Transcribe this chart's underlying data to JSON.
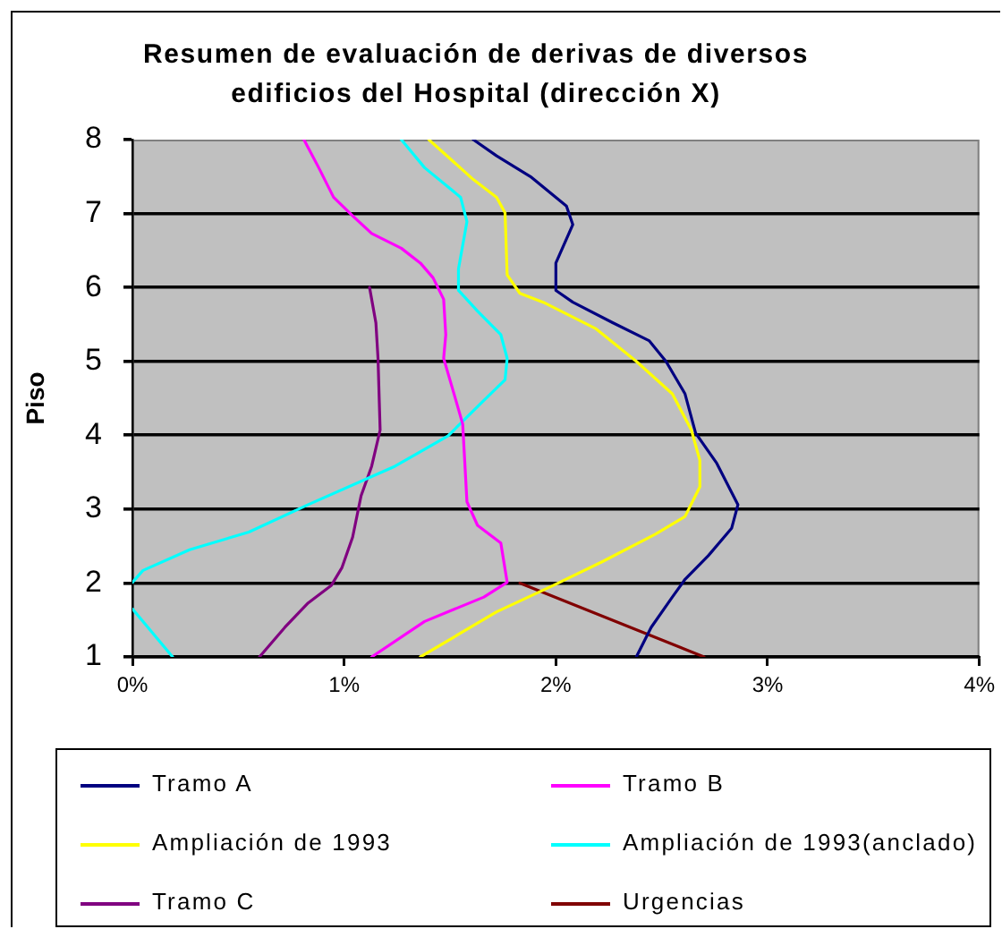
{
  "chart_data": {
    "type": "line",
    "title": "Resumen de evaluación de derivas de diversos edificios del Hospital (dirección X)",
    "ylabel": "Piso",
    "xlim": [
      0,
      4
    ],
    "xticks": [
      {
        "value": 0,
        "label": "0%"
      },
      {
        "value": 1,
        "label": "1%"
      },
      {
        "value": 2,
        "label": "2%"
      },
      {
        "value": 3,
        "label": "3%"
      },
      {
        "value": 4,
        "label": "4%"
      }
    ],
    "ylim": [
      1,
      8
    ],
    "yticks": [
      1,
      2,
      3,
      4,
      5,
      6,
      7,
      8
    ],
    "grid": "y",
    "legend": "bottom",
    "marker": "none",
    "line_style": "solid",
    "series": [
      {
        "name": "Tramo A",
        "color": "#000080",
        "x": [
          1.61,
          1.72,
          1.88,
          2.05,
          2.08,
          2.0,
          2.0,
          2.08,
          2.27,
          2.44,
          2.52,
          2.61,
          2.66,
          2.76,
          2.86,
          2.83,
          2.72,
          2.61,
          2.55,
          2.45,
          2.38
        ],
        "values": [
          8,
          7.78,
          7.5,
          7.1,
          6.85,
          6.33,
          5.96,
          5.8,
          5.52,
          5.28,
          5.0,
          4.56,
          4.03,
          3.62,
          3.06,
          2.74,
          2.37,
          2.05,
          1.81,
          1.4,
          1
        ]
      },
      {
        "name": "Tramo B",
        "color": "#ff00ff",
        "x": [
          0.81,
          0.88,
          0.95,
          1.04,
          1.13,
          1.27,
          1.36,
          1.42,
          1.47,
          1.48,
          1.47,
          1.52,
          1.56,
          1.58,
          1.63,
          1.74,
          1.77,
          1.66,
          1.38,
          1.13
        ],
        "values": [
          8,
          7.62,
          7.22,
          6.97,
          6.73,
          6.53,
          6.33,
          6.13,
          5.84,
          5.36,
          5.04,
          4.55,
          4.15,
          3.1,
          2.78,
          2.54,
          2.01,
          1.81,
          1.48,
          1
        ]
      },
      {
        "name": "Ampliación de 1993",
        "color": "#ffff00",
        "x": [
          1.4,
          1.61,
          1.72,
          1.76,
          1.77,
          1.83,
          1.94,
          2.19,
          2.38,
          2.55,
          2.64,
          2.68,
          2.68,
          2.61,
          2.47,
          2.22,
          1.99,
          1.72,
          1.36
        ],
        "values": [
          8,
          7.46,
          7.22,
          7.01,
          6.17,
          5.92,
          5.8,
          5.44,
          5.0,
          4.56,
          4.07,
          3.66,
          3.3,
          2.9,
          2.66,
          2.29,
          1.97,
          1.61,
          1
        ]
      },
      {
        "name": "Ampliación de 1993(anclado)",
        "color": "#00ffff",
        "x": [
          1.27,
          1.38,
          1.55,
          1.58,
          1.54,
          1.54,
          1.63,
          1.74,
          1.77,
          1.76,
          1.66,
          1.49,
          1.24,
          0.83,
          0.55,
          0.27,
          0.05,
          0,
          null,
          0,
          0.19
        ],
        "values": [
          8,
          7.62,
          7.22,
          6.89,
          6.25,
          5.96,
          5.68,
          5.36,
          5.04,
          4.75,
          4.47,
          3.99,
          3.58,
          3.06,
          2.69,
          2.45,
          2.17,
          2.01,
          null,
          1.65,
          1
        ]
      },
      {
        "name": "Tramo C",
        "color": "#800080",
        "x": [
          1.12,
          1.15,
          1.16,
          1.17,
          1.13,
          1.08,
          1.04,
          0.99,
          0.94,
          0.83,
          0.72,
          0.6
        ],
        "values": [
          6,
          5.52,
          5.04,
          4.07,
          3.58,
          3.18,
          2.62,
          2.21,
          1.97,
          1.73,
          1.4,
          1
        ]
      },
      {
        "name": "Urgencias",
        "color": "#800000",
        "x": [
          1.83,
          2.7
        ],
        "values": [
          2,
          1
        ]
      }
    ]
  }
}
